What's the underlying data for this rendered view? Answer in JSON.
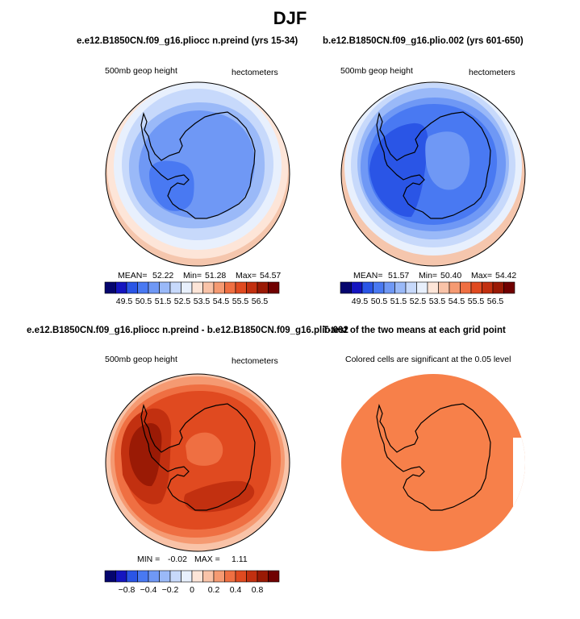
{
  "figure": {
    "title": "DJF"
  },
  "chart_data": [
    {
      "type": "heatmap",
      "title": "e.e12.B1850CN.f09_g16.pliocc n.preind (yrs 15-34)",
      "left_label": "500mb geop height",
      "right_label": "hectometers",
      "stats": {
        "mean_label": "MEAN=",
        "mean": "52.22",
        "min_label": "Min=",
        "min": "51.28",
        "max_label": "Max=",
        "max": "54.57"
      },
      "colorbar": {
        "ticks": [
          "49.5",
          "50.5",
          "51.5",
          "52.5",
          "53.5",
          "54.5",
          "55.5",
          "56.5"
        ],
        "colors": [
          "#05056e",
          "#1515c0",
          "#2a55e6",
          "#4979f2",
          "#6f98f5",
          "#9ab9f8",
          "#c7d9fb",
          "#e8f0fd",
          "#fde5d8",
          "#f9c3a8",
          "#f59a72",
          "#ef6f42",
          "#e04a20",
          "#c23010",
          "#9a1a05",
          "#700000"
        ]
      }
    },
    {
      "type": "heatmap",
      "title": "b.e12.B1850CN.f09_g16.plio.002 (yrs 601-650)",
      "left_label": "500mb geop height",
      "right_label": "hectometers",
      "stats": {
        "mean_label": "MEAN=",
        "mean": "51.57",
        "min_label": "Min=",
        "min": "50.40",
        "max_label": "Max=",
        "max": "54.42"
      },
      "colorbar": {
        "ticks": [
          "49.5",
          "50.5",
          "51.5",
          "52.5",
          "53.5",
          "54.5",
          "55.5",
          "56.5"
        ],
        "colors": [
          "#05056e",
          "#1515c0",
          "#2a55e6",
          "#4979f2",
          "#6f98f5",
          "#9ab9f8",
          "#c7d9fb",
          "#e8f0fd",
          "#fde5d8",
          "#f9c3a8",
          "#f59a72",
          "#ef6f42",
          "#e04a20",
          "#c23010",
          "#9a1a05",
          "#700000"
        ]
      }
    },
    {
      "type": "heatmap",
      "title": "e.e12.B1850CN.f09_g16.pliocc n.preind - b.e12.B1850CN.f09_g16.plio.002",
      "left_label": "500mb geop height",
      "right_label": "hectometers",
      "stats": {
        "min_label": "MIN =",
        "min": "-0.02",
        "max_label": "MAX =",
        "max": "1.11"
      },
      "colorbar": {
        "ticks": [
          "−0.8",
          "−0.4",
          "−0.2",
          "0",
          "0.2",
          "0.4",
          "0.8"
        ],
        "colors": [
          "#05056e",
          "#1515c0",
          "#2a55e6",
          "#4979f2",
          "#6f98f5",
          "#9ab9f8",
          "#c7d9fb",
          "#e8f0fd",
          "#fde5d8",
          "#f9c3a8",
          "#f59a72",
          "#ef6f42",
          "#e04a20",
          "#c23010",
          "#9a1a05",
          "#700000"
        ]
      }
    },
    {
      "type": "heatmap",
      "title": "T-test of the two means at each grid point",
      "left_label": "Colored cells are significant at the 0.05 level",
      "fill_color": "#f7804a"
    }
  ]
}
